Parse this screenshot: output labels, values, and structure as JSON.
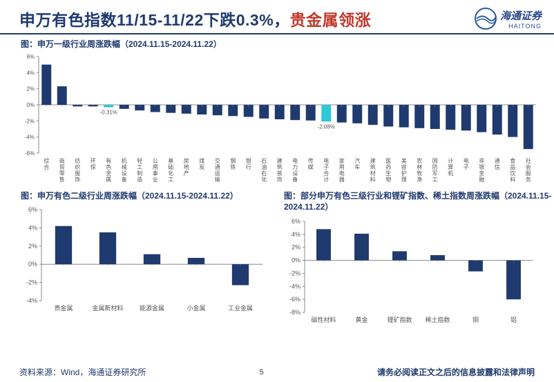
{
  "title_part1": "申万有色指数11/15-11/22下跌0.3%，",
  "title_part2": "贵金属领涨",
  "title_color1": "#1f3a6e",
  "title_color2": "#c0392b",
  "logo_cn": "海通证券",
  "logo_en": "HAITONG",
  "logo_color": "#2a5a9a",
  "chart1": {
    "title": "图：申万一级行业周涨跌幅（2024.11.15-2024.11.22）",
    "categories": [
      "综合",
      "商贸零售",
      "纺织服饰",
      "环保",
      "有色金属",
      "机械设备",
      "轻工制造",
      "公用事业",
      "基础化工",
      "房地产",
      "煤炭",
      "交通运输",
      "钢铁",
      "银行",
      "石油石化",
      "建筑装饰",
      "电力设备",
      "传媒",
      "电子合计",
      "家用电器",
      "汽车",
      "建筑材料",
      "医药生物",
      "美容护理",
      "农林牧渔",
      "国防军工",
      "计算机",
      "电子",
      "非银金融",
      "通信",
      "食品饮料",
      "社会服务"
    ],
    "values": [
      5.0,
      2.3,
      -0.2,
      -0.2,
      -0.31,
      -0.5,
      -0.7,
      -0.9,
      -1.0,
      -1.1,
      -1.2,
      -1.3,
      -1.4,
      -1.5,
      -1.7,
      -1.8,
      -1.9,
      -1.95,
      -2.08,
      -2.2,
      -2.3,
      -2.5,
      -2.7,
      -2.8,
      -2.9,
      -3.0,
      -3.1,
      -3.2,
      -3.4,
      -3.7,
      -4.0,
      -5.5
    ],
    "highlight_idx": [
      4,
      18
    ],
    "highlight_labels": [
      "-0.31%",
      "-2.08%"
    ],
    "bar_color": "#1f3a6e",
    "highlight_color": "#2ec8d8",
    "axis_color": "#888888",
    "tick_color": "#555555",
    "label_color": "#555555",
    "ylim": [
      -6,
      6
    ],
    "ytick_step": 2,
    "y_suffix": "%",
    "tick_fontsize": 8,
    "cat_fontsize": 8
  },
  "chart2": {
    "title": "图：申万有色二级行业周涨跌幅（2024.11.15-2024.11.22）",
    "categories": [
      "贵金属",
      "金属新材料",
      "能源金属",
      "小金属",
      "工业金属"
    ],
    "values": [
      4.2,
      3.5,
      1.1,
      0.7,
      -2.3
    ],
    "bar_color": "#1f3a6e",
    "axis_color": "#888888",
    "label_color": "#555555",
    "ylim": [
      -4,
      6
    ],
    "ytick_step": 2,
    "y_suffix": "%",
    "tick_fontsize": 9,
    "cat_fontsize": 9
  },
  "chart3": {
    "title": "图：部分申万有色三级行业和锂矿指数、稀土指数周涨跌幅（2024.11.15-2024.11.22）",
    "categories": [
      "磁性材料",
      "黄金",
      "锂矿指数",
      "稀土指数",
      "铜",
      "铝"
    ],
    "values": [
      4.8,
      4.1,
      1.4,
      0.8,
      -1.7,
      -6.0
    ],
    "bar_color": "#1f3a6e",
    "axis_color": "#888888",
    "label_color": "#555555",
    "ylim": [
      -8,
      6
    ],
    "ytick_step": 2,
    "y_suffix": "%",
    "tick_fontsize": 9,
    "cat_fontsize": 9
  },
  "footer_source": "资料来源：Wind，海通证券研究所",
  "page_number": "5",
  "footer_disclaimer": "请务必阅读正文之后的信息披露和法律声明"
}
